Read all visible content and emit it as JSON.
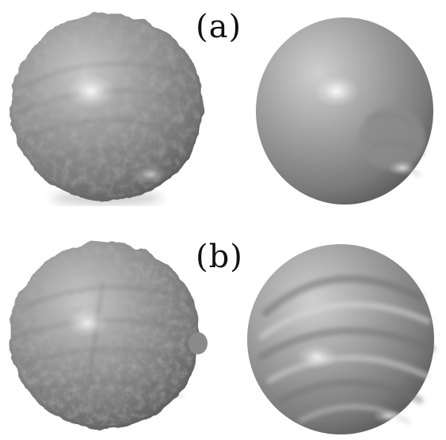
{
  "panels": [
    {
      "label": "(a)"
    },
    {
      "label": "(b)"
    }
  ],
  "colors": {
    "background": "#ffffff",
    "surface_base": "#8a8a8a",
    "surface_highlight": "#e6e6e6",
    "surface_shadow": "#4e4e4e",
    "label_text": "#111111"
  }
}
